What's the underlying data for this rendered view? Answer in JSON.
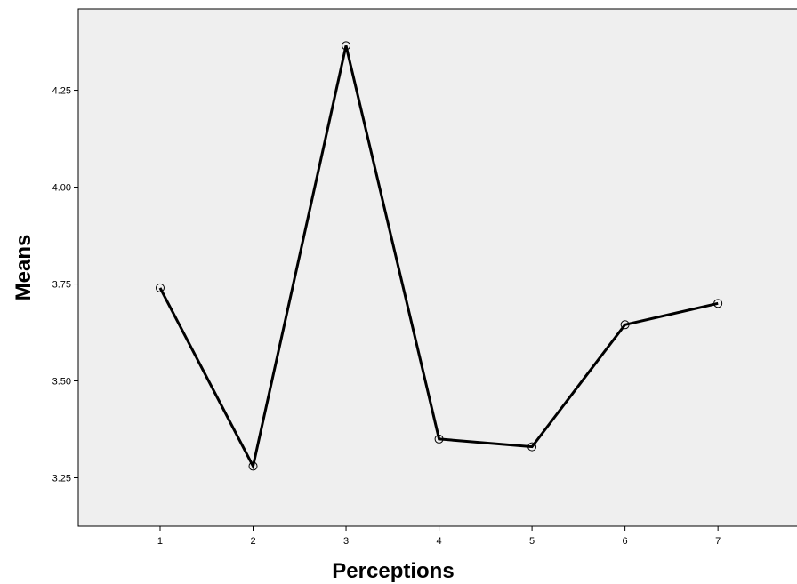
{
  "chart_data": {
    "type": "line",
    "xlabel": "Perceptions",
    "ylabel": "Means",
    "x": [
      1,
      2,
      3,
      4,
      5,
      6,
      7
    ],
    "series": [
      {
        "values": [
          3.74,
          3.28,
          4.365,
          3.35,
          3.33,
          3.645,
          3.7
        ]
      }
    ],
    "xlim": [
      0.12,
      7.85
    ],
    "ylim": [
      3.125,
      4.46
    ],
    "yticks": [
      "3.25",
      "3.50",
      "3.75",
      "4.00",
      "4.25"
    ],
    "xticks": [
      "1",
      "2",
      "3",
      "4",
      "5",
      "6",
      "7"
    ],
    "grid": false,
    "legend": "none",
    "colors": {
      "plot_background": "#efefef",
      "line": "#000000",
      "marker": "#000000"
    }
  }
}
